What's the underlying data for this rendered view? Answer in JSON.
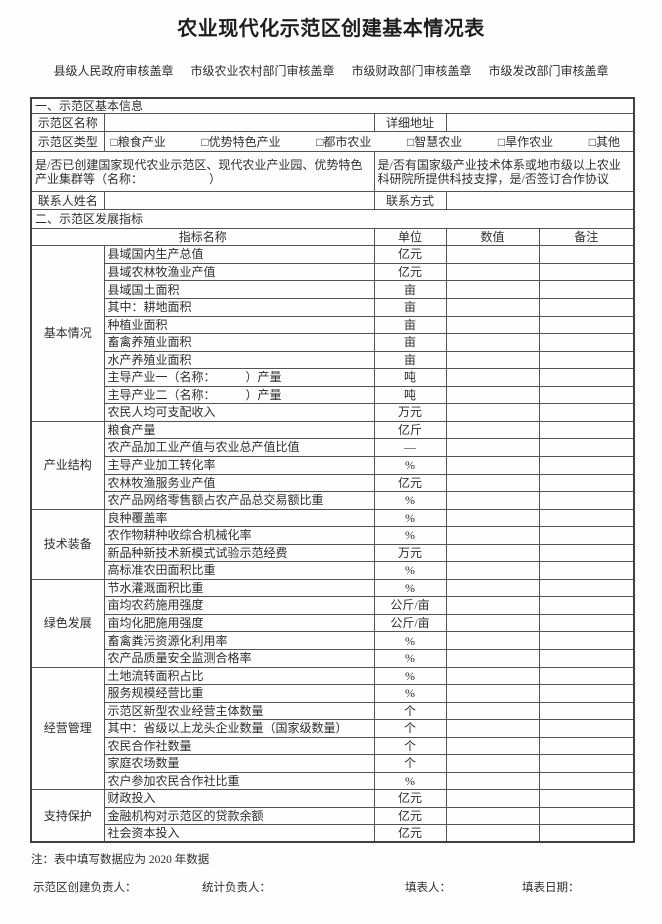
{
  "title": "农业现代化示范区创建基本情况表",
  "stamps": [
    "县级人民政府审核盖章",
    "市级农业农村部门审核盖章",
    "市级财政部门审核盖章",
    "市级发改部门审核盖章"
  ],
  "section1": {
    "header": "一、示范区基本信息",
    "name_label": "示范区名称",
    "address_label": "详细地址",
    "type_label": "示范区类型",
    "type_options": [
      "□粮食产业",
      "□优势特色产业",
      "□都市农业",
      "□智慧农业",
      "□旱作农业",
      "□其他"
    ],
    "created_question": "是/否已创建国家现代农业示范区、现代农业产业园、优势特色产业集群等（名称：　　　　　　）",
    "tech_question": "是/否有国家级产业技术体系或地市级以上农业科研院所提供科技支撑，是/否签订合作协议",
    "contact_name_label": "联系人姓名",
    "contact_method_label": "联系方式"
  },
  "section2": {
    "header": "二、示范区发展指标",
    "columns": [
      "指标名称",
      "单位",
      "数值",
      "备注"
    ],
    "groups": [
      {
        "name": "基本情况",
        "rows": [
          {
            "indicator": "县域国内生产总值",
            "unit": "亿元",
            "indent": 0
          },
          {
            "indicator": "县域农林牧渔业产值",
            "unit": "亿元",
            "indent": 0
          },
          {
            "indicator": "县域国土面积",
            "unit": "亩",
            "indent": 0
          },
          {
            "indicator": "其中：耕地面积",
            "unit": "亩",
            "indent": 1
          },
          {
            "indicator": "种植业面积",
            "unit": "亩",
            "indent": 2
          },
          {
            "indicator": "畜禽养殖业面积",
            "unit": "亩",
            "indent": 2
          },
          {
            "indicator": "水产养殖业面积",
            "unit": "亩",
            "indent": 2
          },
          {
            "indicator": "主导产业一（名称：　　　）产量",
            "unit": "吨",
            "indent": 0
          },
          {
            "indicator": "主导产业二（名称：　　　）产量",
            "unit": "吨",
            "indent": 0
          },
          {
            "indicator": "农民人均可支配收入",
            "unit": "万元",
            "indent": 0
          }
        ]
      },
      {
        "name": "产业结构",
        "rows": [
          {
            "indicator": "粮食产量",
            "unit": "亿斤",
            "indent": 0
          },
          {
            "indicator": "农产品加工业产值与农业总产值比值",
            "unit": "—",
            "indent": 0
          },
          {
            "indicator": "主导产业加工转化率",
            "unit": "%",
            "indent": 0
          },
          {
            "indicator": "农林牧渔服务业产值",
            "unit": "亿元",
            "indent": 0
          },
          {
            "indicator": "农产品网络零售额占农产品总交易额比重",
            "unit": "%",
            "indent": 0
          }
        ]
      },
      {
        "name": "技术装备",
        "rows": [
          {
            "indicator": "良种覆盖率",
            "unit": "%",
            "indent": 0
          },
          {
            "indicator": "农作物耕种收综合机械化率",
            "unit": "%",
            "indent": 0
          },
          {
            "indicator": "新品种新技术新模式试验示范经费",
            "unit": "万元",
            "indent": 0
          },
          {
            "indicator": "高标准农田面积比重",
            "unit": "%",
            "indent": 0
          }
        ]
      },
      {
        "name": "绿色发展",
        "rows": [
          {
            "indicator": "节水灌溉面积比重",
            "unit": "%",
            "indent": 0
          },
          {
            "indicator": "亩均农药施用强度",
            "unit": "公斤/亩",
            "indent": 0
          },
          {
            "indicator": "亩均化肥施用强度",
            "unit": "公斤/亩",
            "indent": 0
          },
          {
            "indicator": "畜禽粪污资源化利用率",
            "unit": "%",
            "indent": 0
          },
          {
            "indicator": "农产品质量安全监测合格率",
            "unit": "%",
            "indent": 0
          }
        ]
      },
      {
        "name": "经营管理",
        "rows": [
          {
            "indicator": "土地流转面积占比",
            "unit": "%",
            "indent": 0
          },
          {
            "indicator": "服务规模经营比重",
            "unit": "%",
            "indent": 0
          },
          {
            "indicator": "示范区新型农业经营主体数量",
            "unit": "个",
            "indent": 0
          },
          {
            "indicator": "其中：省级以上龙头企业数量（国家级数量）",
            "unit": "个",
            "indent": 1
          },
          {
            "indicator": "农民合作社数量",
            "unit": "个",
            "indent": 2
          },
          {
            "indicator": "家庭农场数量",
            "unit": "个",
            "indent": 2
          },
          {
            "indicator": "农户参加农民合作社比重",
            "unit": "%",
            "indent": 0
          }
        ]
      },
      {
        "name": "支持保护",
        "rows": [
          {
            "indicator": "财政投入",
            "unit": "亿元",
            "indent": 0
          },
          {
            "indicator": "金融机构对示范区的贷款余额",
            "unit": "亿元",
            "indent": 0
          },
          {
            "indicator": "社会资本投入",
            "unit": "亿元",
            "indent": 0
          }
        ]
      }
    ]
  },
  "footer": {
    "note": "注：表中填写数据应为 2020 年数据",
    "signatures": [
      "示范区创建负责人：",
      "统计负责人：",
      "填表人：",
      "填表日期："
    ]
  }
}
